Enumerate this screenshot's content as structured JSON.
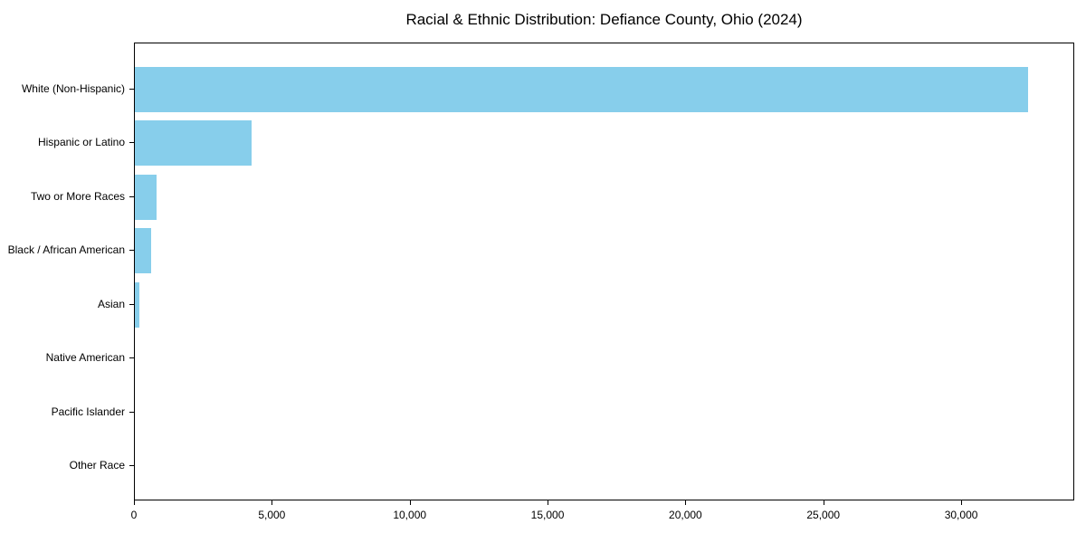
{
  "chart_data": {
    "type": "bar",
    "orientation": "horizontal",
    "title": "Racial & Ethnic Distribution: Defiance County, Ohio (2024)",
    "categories": [
      "White (Non-Hispanic)",
      "Hispanic or Latino",
      "Two or More Races",
      "Black / African American",
      "Asian",
      "Native American",
      "Pacific Islander",
      "Other Race"
    ],
    "values": [
      32400,
      4250,
      800,
      600,
      150,
      0,
      0,
      0
    ],
    "bar_color": "#87CEEB",
    "xlabel": "",
    "ylabel": "",
    "xlim": [
      0,
      34100
    ],
    "x_ticks": {
      "values": [
        0,
        5000,
        10000,
        15000,
        20000,
        25000,
        30000
      ],
      "labels": [
        "0",
        "5,000",
        "10,000",
        "15,000",
        "20,000",
        "25,000",
        "30,000"
      ]
    },
    "grid": false,
    "legend": "none",
    "background_color": "#ffffff",
    "text_color": "#000000"
  }
}
